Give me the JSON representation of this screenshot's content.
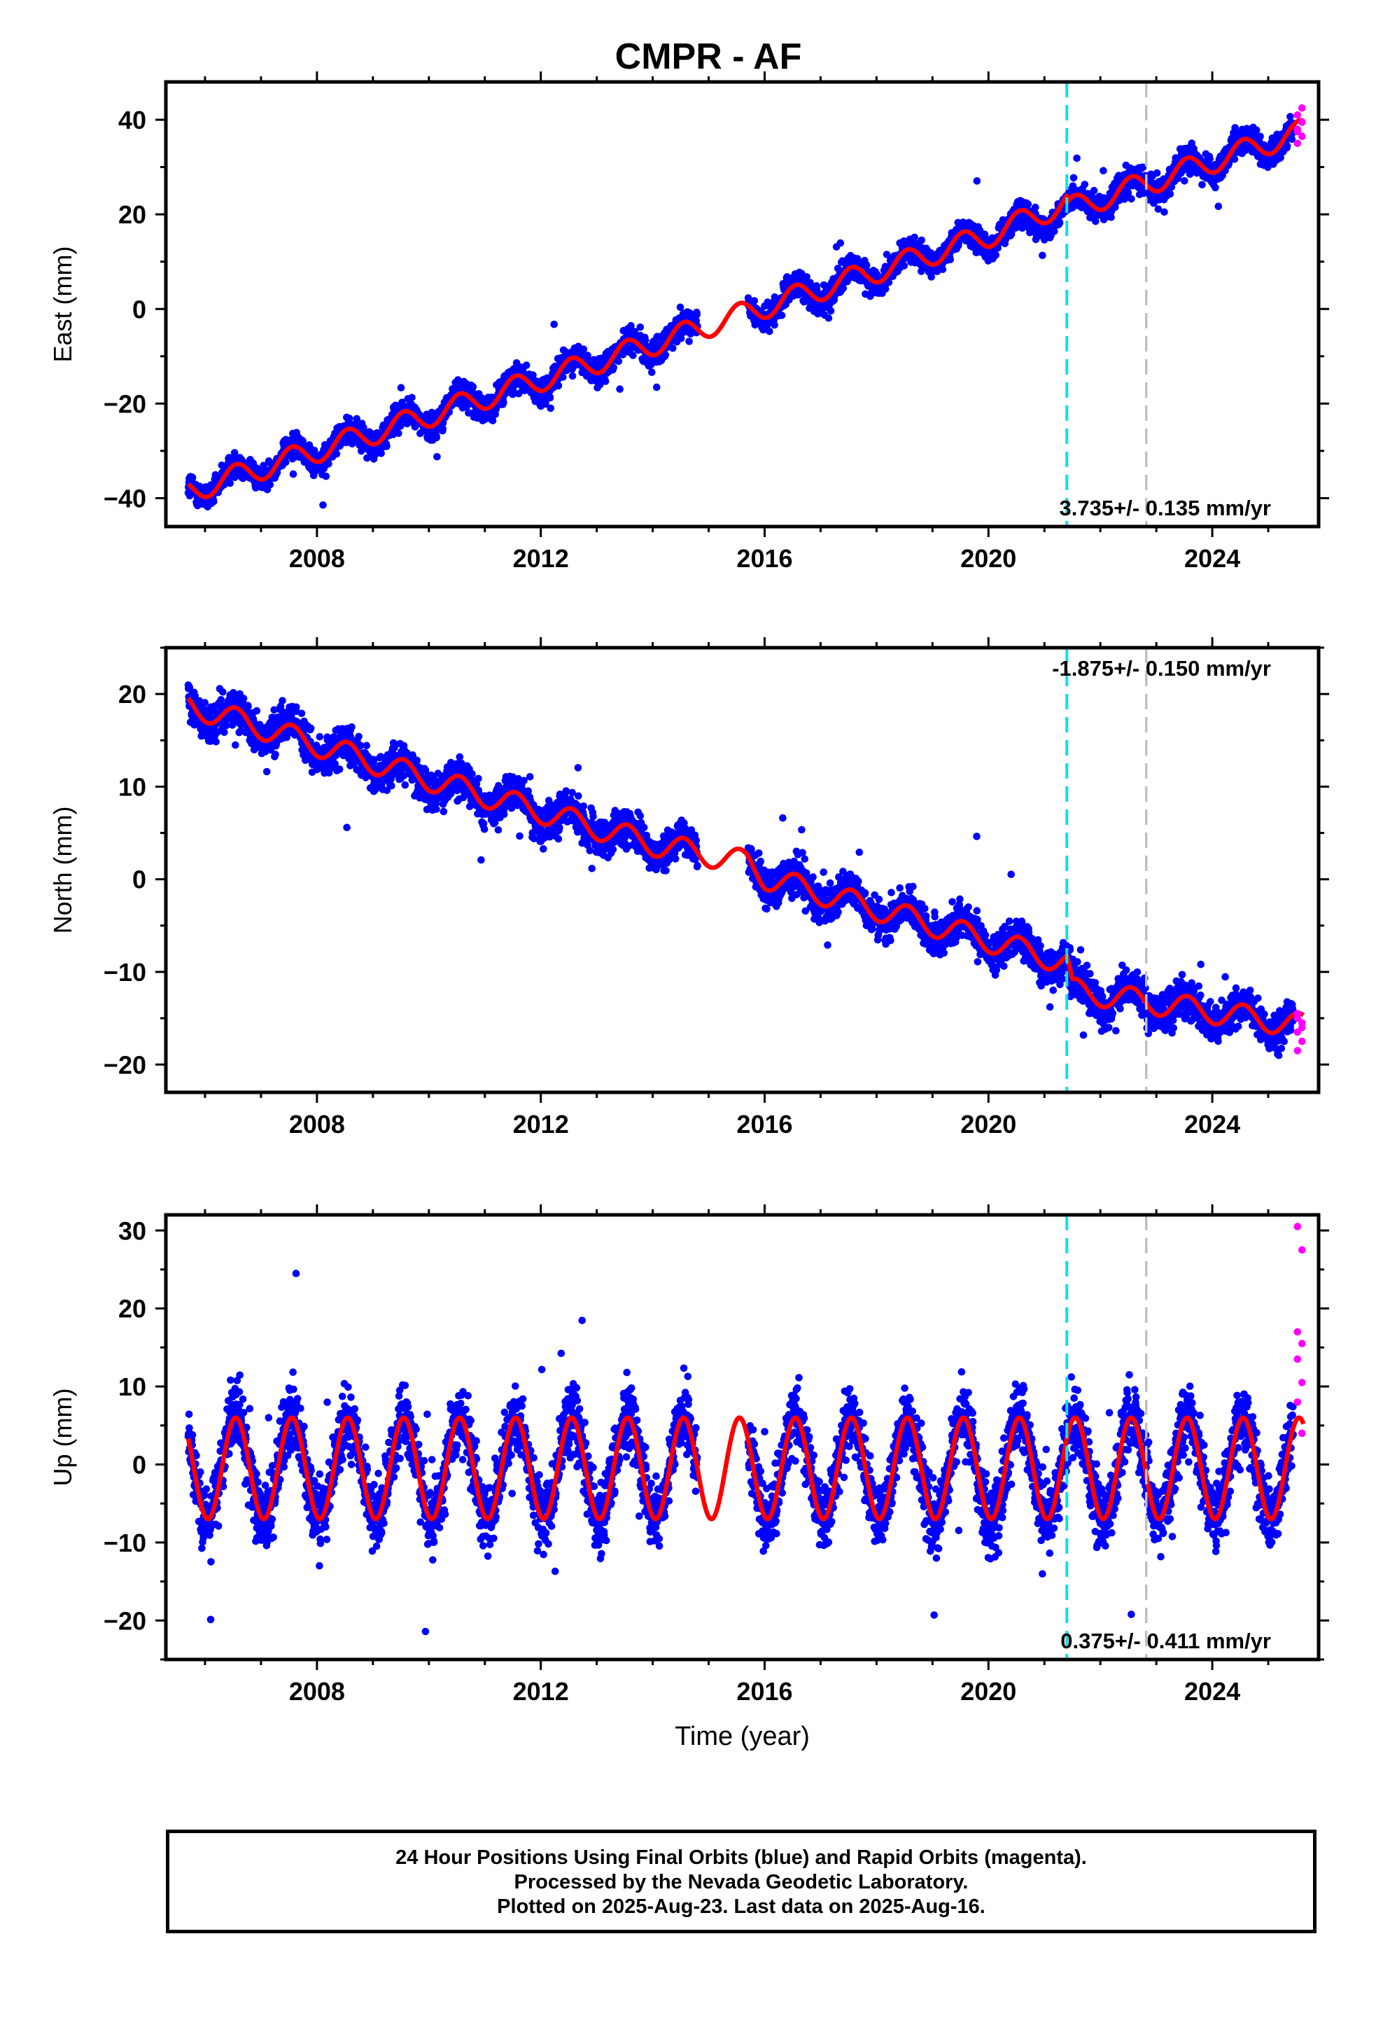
{
  "title": "CMPR - AF",
  "footer": {
    "lines": [
      "24 Hour Positions Using Final Orbits (blue) and Rapid Orbits (magenta).",
      "Processed by the Nevada Geodetic Laboratory.",
      "Plotted on 2025-Aug-23. Last data on 2025-Aug-16."
    ]
  },
  "colors": {
    "final_orbits": "#0000ff",
    "rapid_orbits": "#ff00ff",
    "model_fit": "#ff0000",
    "equipment_change_line": "#00e5ee",
    "other_change_line": "#c0c0c0"
  },
  "chart_data": [
    {
      "type": "scatter",
      "ylabel": "East (mm)",
      "xlabel": "",
      "xlim": [
        2005.3,
        2025.9
      ],
      "ylim": [
        -46,
        48
      ],
      "x_ticks": [
        2008,
        2012,
        2016,
        2020,
        2024
      ],
      "y_ticks": [
        -40,
        -20,
        0,
        20,
        40
      ],
      "rate_label": "3.735+/- 0.135 mm/yr",
      "rate_label_position": "bottom-right",
      "vertical_lines": [
        {
          "x": 2021.4,
          "color": "cyan",
          "style": "dashed"
        },
        {
          "x": 2022.82,
          "color": "gray",
          "style": "dashed"
        }
      ],
      "data_span": [
        2005.7,
        2025.63
      ],
      "data_gap": [
        2014.8,
        2015.7
      ],
      "rapid_orbits_span": [
        2025.45,
        2025.63
      ],
      "series": [
        {
          "kind": "final_orbits",
          "trend_points": [
            [
              2005.7,
              -38.5
            ],
            [
              2010,
              -22.5
            ],
            [
              2014.5,
              -5.5
            ],
            [
              2016,
              0.5
            ],
            [
              2020,
              15.5
            ],
            [
              2025.6,
              37.5
            ]
          ],
          "seasonal_amplitude": 2.5,
          "scatter_range": 3.5
        },
        {
          "kind": "rapid_orbits",
          "values": [
            35,
            36.5,
            38,
            39.5,
            41,
            42.5,
            37.5
          ]
        },
        {
          "kind": "model_fit",
          "trend_points": [
            [
              2005.7,
              -38.5
            ],
            [
              2010,
              -22.5
            ],
            [
              2014.5,
              -5.5
            ],
            [
              2016,
              0.5
            ],
            [
              2020,
              15.5
            ],
            [
              2021.4,
              22.5
            ],
            [
              2021.41,
              21
            ],
            [
              2025.6,
              37.5
            ]
          ],
          "seasonal_amplitude": 2.5
        }
      ]
    },
    {
      "type": "scatter",
      "ylabel": "North (mm)",
      "xlabel": "",
      "xlim": [
        2005.3,
        2025.9
      ],
      "ylim": [
        -23,
        25
      ],
      "x_ticks": [
        2008,
        2012,
        2016,
        2020,
        2024
      ],
      "y_ticks": [
        -20,
        -10,
        0,
        10,
        20
      ],
      "rate_label": "-1.875+/- 0.150 mm/yr",
      "rate_label_position": "top-right",
      "vertical_lines": [
        {
          "x": 2021.4,
          "color": "cyan",
          "style": "dashed"
        },
        {
          "x": 2022.82,
          "color": "gray",
          "style": "dashed"
        }
      ],
      "data_span": [
        2005.7,
        2025.63
      ],
      "data_gap": [
        2014.8,
        2015.7
      ],
      "rapid_orbits_span": [
        2025.45,
        2025.63
      ],
      "series": [
        {
          "kind": "final_orbits",
          "trend_points": [
            [
              2005.7,
              18.8
            ],
            [
              2010,
              10.8
            ],
            [
              2014,
              3.8
            ],
            [
              2015.7,
              1.8
            ],
            [
              2016,
              0.2
            ],
            [
              2021.4,
              -9
            ],
            [
              2021.5,
              -12
            ],
            [
              2025.6,
              -15.8
            ]
          ],
          "seasonal_amplitude": 1.3,
          "scatter_range": 2.5
        },
        {
          "kind": "rapid_orbits",
          "values": [
            -14.5,
            -15.5,
            -16.5,
            -17.5,
            -18.5,
            -16,
            -15
          ]
        },
        {
          "kind": "model_fit",
          "trend_points": [
            [
              2005.7,
              18.8
            ],
            [
              2010,
              10.8
            ],
            [
              2014,
              3.8
            ],
            [
              2015.7,
              1.8
            ],
            [
              2016,
              0.2
            ],
            [
              2021.4,
              -9
            ],
            [
              2021.5,
              -12
            ],
            [
              2025.6,
              -15.8
            ]
          ],
          "seasonal_amplitude": 1.3
        }
      ]
    },
    {
      "type": "scatter",
      "ylabel": "Up (mm)",
      "xlabel": "Time (year)",
      "xlim": [
        2005.3,
        2025.9
      ],
      "ylim": [
        -25,
        32
      ],
      "x_ticks": [
        2008,
        2012,
        2016,
        2020,
        2024
      ],
      "y_ticks": [
        -20,
        -10,
        0,
        10,
        20,
        30
      ],
      "rate_label": "0.375+/- 0.411 mm/yr",
      "rate_label_position": "bottom-right",
      "vertical_lines": [
        {
          "x": 2021.4,
          "color": "cyan",
          "style": "dashed"
        },
        {
          "x": 2022.82,
          "color": "gray",
          "style": "dashed"
        }
      ],
      "data_span": [
        2005.7,
        2025.63
      ],
      "data_gap": [
        2014.8,
        2015.7
      ],
      "rapid_orbits_span": [
        2025.45,
        2025.63
      ],
      "series": [
        {
          "kind": "final_orbits",
          "trend_points": [
            [
              2005.7,
              -0.5
            ],
            [
              2025.6,
              -0.5
            ]
          ],
          "seasonal_amplitude": 6.5,
          "scatter_range": 5.5
        },
        {
          "kind": "rapid_orbits",
          "values": [
            30.5,
            27.5,
            17,
            15.5,
            13.5,
            10.5,
            8,
            4
          ]
        },
        {
          "kind": "model_fit",
          "trend_points": [
            [
              2005.7,
              -0.5
            ],
            [
              2025.6,
              -0.5
            ]
          ],
          "seasonal_amplitude": 6.5
        }
      ]
    }
  ]
}
